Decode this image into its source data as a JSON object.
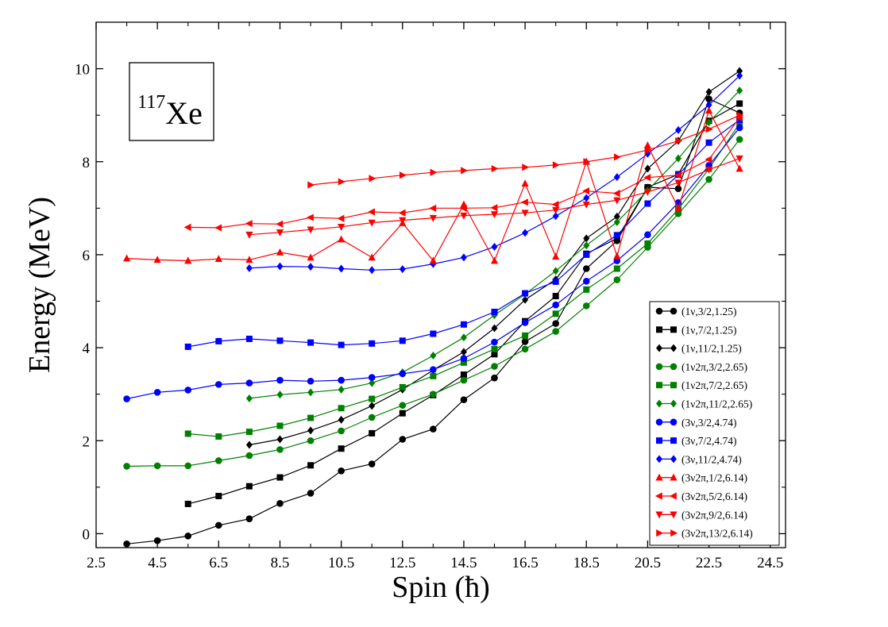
{
  "chart_data": {
    "type": "line",
    "xlabel": "Spin (ħ)",
    "ylabel": "Energy (MeV)",
    "xlim": [
      2.5,
      25.0
    ],
    "ylim": [
      -0.3,
      11.0
    ],
    "xticks": [
      2.5,
      4.5,
      6.5,
      8.5,
      10.5,
      12.5,
      14.5,
      16.5,
      18.5,
      20.5,
      22.5,
      24.5
    ],
    "xtick_labels": [
      "2.5",
      "4.5",
      "6.5",
      "8.5",
      "10.5",
      "12.5",
      "14.5",
      "16.5",
      "18.5",
      "20.5",
      "22.5",
      "24.5"
    ],
    "yticks": [
      0,
      2,
      4,
      6,
      8,
      10
    ],
    "ytick_labels": [
      "0",
      "2",
      "4",
      "6",
      "8",
      "10"
    ],
    "annotation": {
      "mass": "117",
      "element": "Xe"
    },
    "grid": false,
    "legend_position": "bottom-right",
    "series": [
      {
        "name": "(1ν,3/2,1.25)",
        "color": "#000000",
        "marker": "circle",
        "x": [
          3.5,
          4.5,
          5.5,
          6.5,
          7.5,
          8.5,
          9.5,
          10.5,
          11.5,
          12.5,
          13.5,
          14.5,
          15.5,
          16.5,
          17.5,
          18.5,
          19.5,
          20.5,
          21.5,
          22.5,
          23.5
        ],
        "y": [
          -0.22,
          -0.15,
          -0.05,
          0.18,
          0.32,
          0.65,
          0.87,
          1.35,
          1.5,
          2.03,
          2.25,
          2.88,
          3.35,
          4.13,
          4.52,
          5.7,
          6.3,
          7.45,
          7.42,
          9.35,
          9.05
        ]
      },
      {
        "name": "(1ν,7/2,1.25)",
        "color": "#000000",
        "marker": "square",
        "x": [
          5.5,
          6.5,
          7.5,
          8.5,
          9.5,
          10.5,
          11.5,
          12.5,
          13.5,
          14.5,
          15.5,
          16.5,
          17.5,
          18.5,
          19.5,
          20.5,
          21.5,
          22.5,
          23.5
        ],
        "y": [
          0.64,
          0.81,
          1.02,
          1.21,
          1.47,
          1.83,
          2.16,
          2.59,
          2.98,
          3.42,
          3.86,
          4.57,
          5.11,
          6.02,
          6.35,
          7.45,
          7.73,
          8.88,
          9.25
        ]
      },
      {
        "name": "(1ν,11/2,1.25)",
        "color": "#000000",
        "marker": "diamond",
        "x": [
          7.5,
          8.5,
          9.5,
          10.5,
          11.5,
          12.5,
          13.5,
          14.5,
          15.5,
          16.5,
          17.5,
          18.5,
          19.5,
          20.5,
          21.5,
          22.5,
          23.5
        ],
        "y": [
          1.91,
          2.03,
          2.22,
          2.45,
          2.75,
          3.1,
          3.52,
          3.91,
          4.42,
          5.03,
          5.47,
          6.35,
          6.82,
          7.85,
          8.45,
          9.5,
          9.95
        ]
      },
      {
        "name": "(1ν2π,3/2,2.65)",
        "color": "#008000",
        "marker": "circle",
        "x": [
          3.5,
          4.5,
          5.5,
          6.5,
          7.5,
          8.5,
          9.5,
          10.5,
          11.5,
          12.5,
          13.5,
          14.5,
          15.5,
          16.5,
          17.5,
          18.5,
          19.5,
          20.5,
          21.5,
          22.5,
          23.5
        ],
        "y": [
          1.45,
          1.46,
          1.46,
          1.57,
          1.68,
          1.81,
          2.0,
          2.21,
          2.5,
          2.76,
          3.0,
          3.3,
          3.6,
          3.97,
          4.35,
          4.9,
          5.46,
          6.16,
          6.88,
          7.62,
          8.48
        ]
      },
      {
        "name": "(1ν2π,7/2,2.65)",
        "color": "#008000",
        "marker": "square",
        "x": [
          5.5,
          6.5,
          7.5,
          8.5,
          9.5,
          10.5,
          11.5,
          12.5,
          13.5,
          14.5,
          15.5,
          16.5,
          17.5,
          18.5,
          19.5,
          20.5,
          21.5,
          22.5,
          23.5
        ],
        "y": [
          2.15,
          2.09,
          2.19,
          2.32,
          2.49,
          2.7,
          2.9,
          3.15,
          3.39,
          3.68,
          3.97,
          4.26,
          4.73,
          5.25,
          5.7,
          6.24,
          6.98,
          7.85,
          8.82
        ]
      },
      {
        "name": "(1ν2π,11/2,2.65)",
        "color": "#008000",
        "marker": "diamond",
        "x": [
          7.5,
          8.5,
          9.5,
          10.5,
          11.5,
          12.5,
          13.5,
          14.5,
          15.5,
          16.5,
          17.5,
          18.5,
          19.5,
          20.5,
          21.5,
          22.5,
          23.5
        ],
        "y": [
          2.91,
          2.99,
          3.04,
          3.1,
          3.24,
          3.47,
          3.83,
          4.22,
          4.7,
          5.15,
          5.65,
          6.2,
          6.7,
          7.38,
          8.07,
          8.85,
          9.53
        ]
      },
      {
        "name": "(3ν,3/2,4.74)",
        "color": "#0000ff",
        "marker": "circle",
        "x": [
          3.5,
          4.5,
          5.5,
          6.5,
          7.5,
          8.5,
          9.5,
          10.5,
          11.5,
          12.5,
          13.5,
          14.5,
          15.5,
          16.5,
          17.5,
          18.5,
          19.5,
          20.5,
          21.5,
          22.5,
          23.5
        ],
        "y": [
          2.9,
          3.04,
          3.09,
          3.21,
          3.24,
          3.3,
          3.28,
          3.3,
          3.36,
          3.44,
          3.53,
          3.77,
          4.12,
          4.54,
          4.92,
          5.43,
          5.87,
          6.43,
          7.12,
          7.92,
          8.73
        ]
      },
      {
        "name": "(3ν,7/2,4.74)",
        "color": "#0000ff",
        "marker": "square",
        "x": [
          5.5,
          6.5,
          7.5,
          8.5,
          9.5,
          10.5,
          11.5,
          12.5,
          13.5,
          14.5,
          15.5,
          16.5,
          17.5,
          18.5,
          19.5,
          20.5,
          21.5,
          22.5,
          23.5
        ],
        "y": [
          4.02,
          4.14,
          4.19,
          4.15,
          4.11,
          4.06,
          4.09,
          4.15,
          4.3,
          4.5,
          4.77,
          5.17,
          5.42,
          6.0,
          6.42,
          7.1,
          7.72,
          8.41,
          8.9
        ]
      },
      {
        "name": "(3ν,11/2,4.74)",
        "color": "#0000ff",
        "marker": "diamond",
        "x": [
          7.5,
          8.5,
          9.5,
          10.5,
          11.5,
          12.5,
          13.5,
          14.5,
          15.5,
          16.5,
          17.5,
          18.5,
          19.5,
          20.5,
          21.5,
          22.5,
          23.5
        ],
        "y": [
          5.71,
          5.75,
          5.74,
          5.7,
          5.67,
          5.69,
          5.8,
          5.94,
          6.17,
          6.47,
          6.83,
          7.22,
          7.67,
          8.17,
          8.68,
          9.22,
          9.85
        ]
      },
      {
        "name": "(3ν2π,1/2,6.14)",
        "color": "#ff0000",
        "marker": "triangle-up",
        "x": [
          3.5,
          4.5,
          5.5,
          6.5,
          7.5,
          8.5,
          9.5,
          10.5,
          11.5,
          12.5,
          13.5,
          14.5,
          15.5,
          16.5,
          17.5,
          18.5,
          19.5,
          20.5,
          21.5,
          22.5,
          23.5
        ],
        "y": [
          5.92,
          5.89,
          5.87,
          5.91,
          5.89,
          6.05,
          5.94,
          6.33,
          5.94,
          6.68,
          5.87,
          7.08,
          5.87,
          7.53,
          5.96,
          8.0,
          5.97,
          8.35,
          7.0,
          9.1,
          7.85
        ]
      },
      {
        "name": "(3ν2π,5/2,6.14)",
        "color": "#ff0000",
        "marker": "triangle-left",
        "x": [
          5.5,
          6.5,
          7.5,
          8.5,
          9.5,
          10.5,
          11.5,
          12.5,
          13.5,
          14.5,
          15.5,
          16.5,
          17.5,
          18.5,
          19.5,
          20.5,
          21.5,
          22.5,
          23.5
        ],
        "y": [
          6.59,
          6.58,
          6.67,
          6.66,
          6.8,
          6.78,
          6.92,
          6.9,
          7.0,
          7.0,
          7.01,
          7.13,
          7.08,
          7.37,
          7.32,
          7.66,
          7.71,
          8.05,
          8.95
        ]
      },
      {
        "name": "(3ν2π,9/2,6.14)",
        "color": "#ff0000",
        "marker": "triangle-down",
        "x": [
          7.5,
          8.5,
          9.5,
          10.5,
          11.5,
          12.5,
          13.5,
          14.5,
          15.5,
          16.5,
          17.5,
          18.5,
          19.5,
          20.5,
          21.5,
          22.5,
          23.5
        ],
        "y": [
          6.43,
          6.48,
          6.54,
          6.6,
          6.69,
          6.74,
          6.79,
          6.84,
          6.87,
          6.9,
          6.96,
          7.08,
          7.17,
          7.35,
          7.55,
          7.83,
          8.07
        ]
      },
      {
        "name": "(3ν2π,13/2,6.14)",
        "color": "#ff0000",
        "marker": "triangle-right",
        "x": [
          9.5,
          10.5,
          11.5,
          12.5,
          13.5,
          14.5,
          15.5,
          16.5,
          17.5,
          18.5,
          19.5,
          20.5,
          21.5,
          22.5,
          23.5
        ],
        "y": [
          7.5,
          7.57,
          7.64,
          7.71,
          7.77,
          7.81,
          7.85,
          7.88,
          7.93,
          8.0,
          8.1,
          8.25,
          8.45,
          8.7,
          9.0
        ]
      }
    ]
  }
}
